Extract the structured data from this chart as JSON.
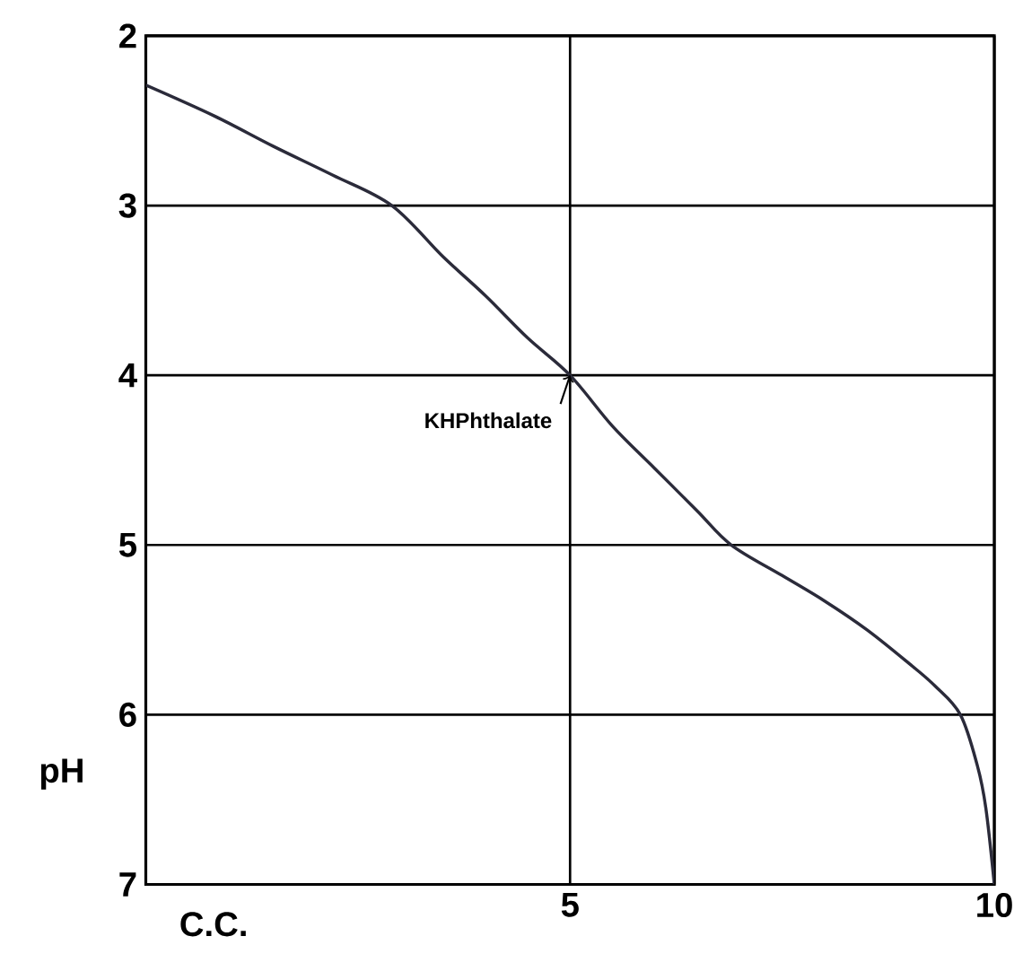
{
  "chart_data": {
    "type": "line",
    "xlabel": "C.C.",
    "ylabel": "pH",
    "x": [
      0,
      0.8,
      1.5,
      2.2,
      2.9,
      3.5,
      4.0,
      4.5,
      5.0,
      5.5,
      6.0,
      6.5,
      6.9,
      7.5,
      8.0,
      8.5,
      9.0,
      9.3,
      9.6,
      9.8,
      9.9,
      10.0
    ],
    "series": [
      {
        "color": "#2b2b3a",
        "values": [
          2.29,
          2.47,
          2.65,
          2.82,
          3.0,
          3.3,
          3.53,
          3.78,
          4.0,
          4.3,
          4.55,
          4.8,
          5.0,
          5.18,
          5.33,
          5.5,
          5.7,
          5.83,
          6.0,
          6.3,
          6.55,
          7.0
        ]
      }
    ],
    "xlim": [
      0,
      10
    ],
    "ylim": [
      7,
      2
    ],
    "xticks": [
      5,
      10
    ],
    "yticks": [
      2,
      3,
      4,
      5,
      6,
      7
    ],
    "grid": true,
    "marker": "none",
    "line_style": "solid",
    "annotations": [
      {
        "text": "KHPhthalate",
        "x": 5,
        "y": 4.0
      }
    ]
  }
}
